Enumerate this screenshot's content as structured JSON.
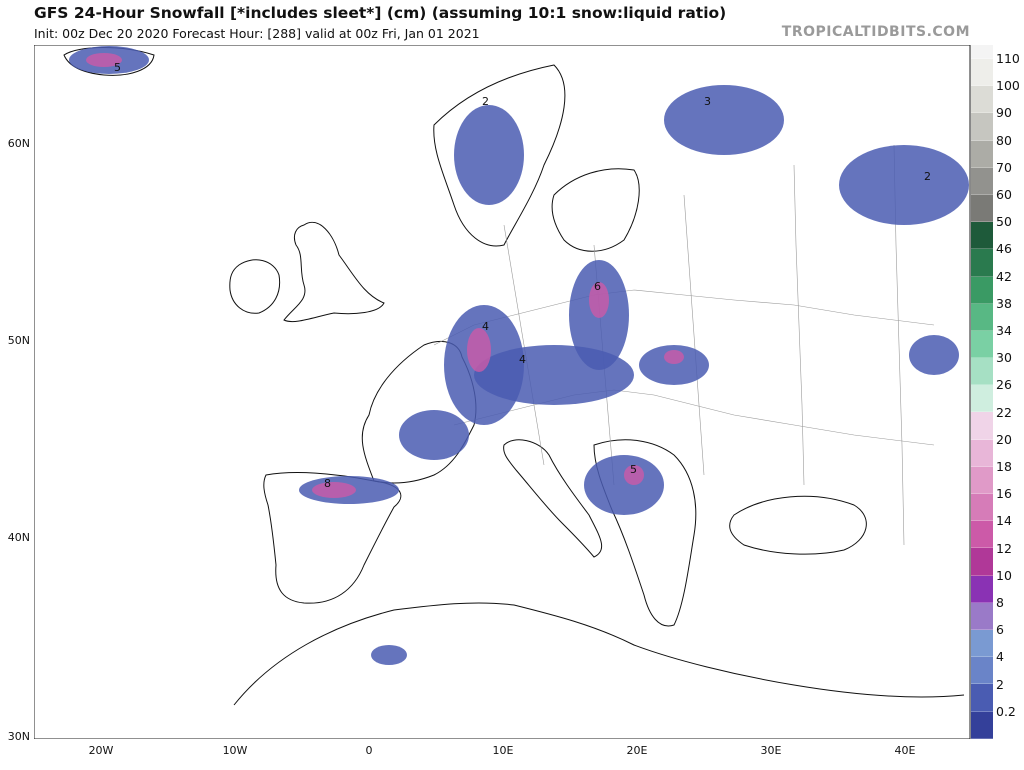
{
  "header": {
    "title": "GFS 24-Hour Snowfall [*includes sleet*] (cm) (assuming 10:1 snow:liquid ratio)",
    "subtitle": "Init: 00z Dec 20 2020   Forecast Hour: [288]   valid at 00z Fri, Jan 01 2021",
    "brand": "TROPICALTIDBITS.COM"
  },
  "axes": {
    "lat_labels": [
      "60N",
      "50N",
      "40N",
      "30N"
    ],
    "lon_labels": [
      "20W",
      "10W",
      "0",
      "10E",
      "20E",
      "30E",
      "40E"
    ]
  },
  "colorbar": {
    "labels": [
      "110",
      "100",
      "90",
      "80",
      "70",
      "60",
      "50",
      "46",
      "42",
      "38",
      "34",
      "30",
      "26",
      "22",
      "20",
      "18",
      "16",
      "14",
      "12",
      "10",
      "8",
      "6",
      "4",
      "2",
      "0.2"
    ],
    "colors": [
      "#eeeeea",
      "#dcdcd6",
      "#c6c6c0",
      "#acaca6",
      "#92928e",
      "#7a7a76",
      "#1e5a3a",
      "#2a7a4e",
      "#3a9a64",
      "#58b884",
      "#7ad0a4",
      "#a6e0c4",
      "#cfeedf",
      "#f0d4e8",
      "#e8b6d8",
      "#e09ac8",
      "#d67cb8",
      "#cc5aa8",
      "#b03898",
      "#8a32b4",
      "#9a7ac8",
      "#7a9ad2",
      "#6a84c8",
      "#4a5cb2",
      "#34409a"
    ],
    "top_blank": "#f4f4f4"
  },
  "snow_regions": [
    {
      "label": "Iceland",
      "value": "5"
    },
    {
      "label": "Scandinavia",
      "value": "2"
    },
    {
      "label": "Finland",
      "value": "3"
    },
    {
      "label": "Western Russia",
      "value": "2"
    },
    {
      "label": "Germany",
      "value": "4"
    },
    {
      "label": "Poland",
      "value": "6"
    },
    {
      "label": "Alps",
      "value": "4"
    },
    {
      "label": "Balkans",
      "value": "5"
    },
    {
      "label": "Pyrenees",
      "value": "8"
    }
  ]
}
